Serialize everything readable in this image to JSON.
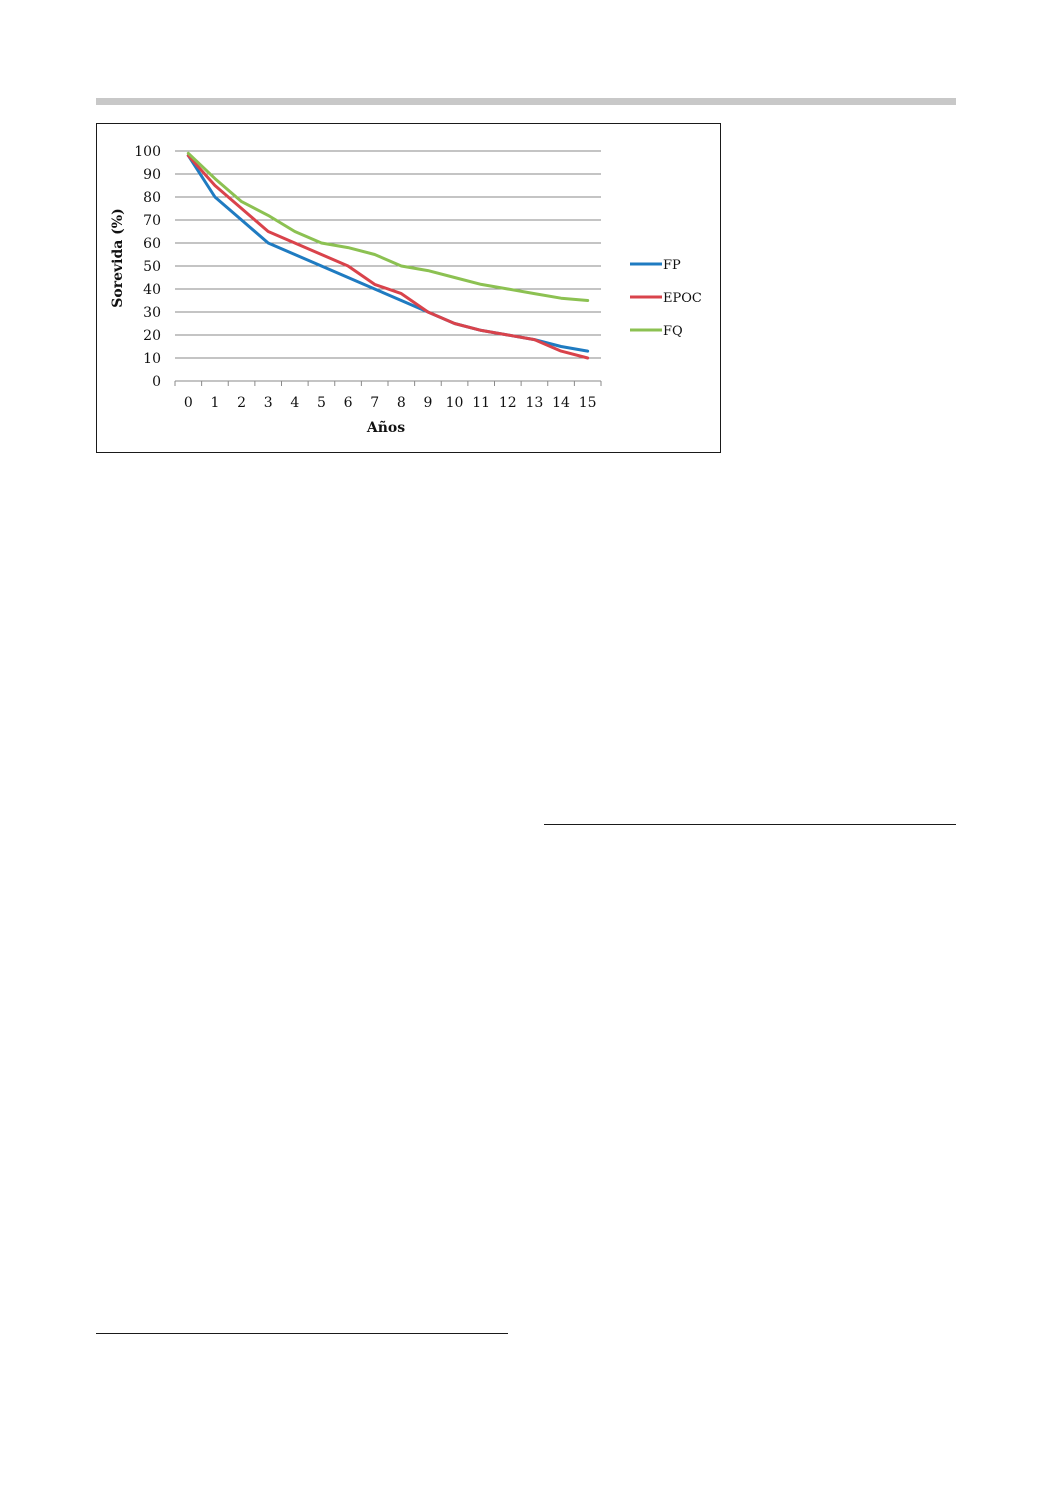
{
  "chart_data": {
    "type": "line",
    "title": "",
    "xlabel": "Años",
    "ylabel": "Sorevida (%)",
    "x": [
      0,
      1,
      2,
      3,
      4,
      5,
      6,
      7,
      8,
      9,
      10,
      11,
      12,
      13,
      14,
      15
    ],
    "ylim": [
      0,
      100
    ],
    "yticks": [
      0,
      10,
      20,
      30,
      40,
      50,
      60,
      70,
      80,
      90,
      100
    ],
    "grid": true,
    "legend_position": "right",
    "series": [
      {
        "name": "FP",
        "color": "#1f7bc1",
        "values": [
          98,
          80,
          70,
          60,
          55,
          50,
          45,
          40,
          35,
          30,
          25,
          22,
          20,
          18,
          15,
          13
        ]
      },
      {
        "name": "EPOC",
        "color": "#d9434b",
        "values": [
          98,
          85,
          75,
          65,
          60,
          55,
          50,
          42,
          38,
          30,
          25,
          22,
          20,
          18,
          13,
          10
        ]
      },
      {
        "name": "FQ",
        "color": "#8cc152",
        "values": [
          99,
          88,
          78,
          72,
          65,
          60,
          58,
          55,
          50,
          48,
          45,
          42,
          40,
          38,
          36,
          35
        ]
      }
    ]
  }
}
